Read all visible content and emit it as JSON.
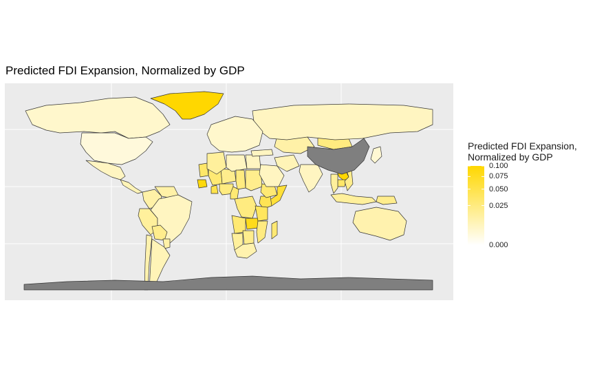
{
  "title": "Predicted FDI Expansion, Normalized by GDP",
  "legend": {
    "title_line1": "Predicted FDI Expansion,",
    "title_line2": "Normalized by GDP",
    "ticks": [
      "0.100",
      "0.075",
      "0.050",
      "0.025",
      "0.000"
    ],
    "tick_values": [
      0.1,
      0.075,
      0.05,
      0.025,
      0.0
    ],
    "scale": "sqrt",
    "color_low": "#ffffff",
    "color_high": "#ffd700",
    "missing_color": "#7f7f7f"
  },
  "map": {
    "type": "choropleth",
    "projection": "equirectangular",
    "panel_background": "#ebebeb",
    "grid": true,
    "border_color": "#333333",
    "regions": [
      {
        "name": "Greenland",
        "value": 0.1
      },
      {
        "name": "Laos",
        "value": 0.1
      },
      {
        "name": "Guinea",
        "value": 0.09
      },
      {
        "name": "Zambia",
        "value": 0.08
      },
      {
        "name": "Somalia",
        "value": 0.06
      },
      {
        "name": "Kenya",
        "value": 0.045
      },
      {
        "name": "Ghana",
        "value": 0.05
      },
      {
        "name": "Mali",
        "value": 0.03
      },
      {
        "name": "Mauritania",
        "value": 0.035
      },
      {
        "name": "Niger",
        "value": 0.02
      },
      {
        "name": "Algeria",
        "value": 0.015
      },
      {
        "name": "Libya",
        "value": 0.006
      },
      {
        "name": "Egypt",
        "value": 0.006
      },
      {
        "name": "Sudan",
        "value": 0.02
      },
      {
        "name": "Chad",
        "value": 0.025
      },
      {
        "name": "Nigeria",
        "value": 0.025
      },
      {
        "name": "Cameroon",
        "value": 0.03
      },
      {
        "name": "DR Congo",
        "value": 0.025
      },
      {
        "name": "Ethiopia",
        "value": 0.03
      },
      {
        "name": "Tanzania",
        "value": 0.04
      },
      {
        "name": "Angola",
        "value": 0.03
      },
      {
        "name": "Namibia",
        "value": 0.015
      },
      {
        "name": "Botswana",
        "value": 0.02
      },
      {
        "name": "South Africa",
        "value": 0.01
      },
      {
        "name": "Mozambique",
        "value": 0.025
      },
      {
        "name": "Madagascar",
        "value": 0.03
      },
      {
        "name": "Cambodia",
        "value": 0.035
      },
      {
        "name": "Vietnam",
        "value": 0.02
      },
      {
        "name": "Thailand",
        "value": 0.015
      },
      {
        "name": "Mongolia",
        "value": 0.025
      },
      {
        "name": "Kazakhstan",
        "value": 0.012
      },
      {
        "name": "Russia",
        "value": 0.006
      },
      {
        "name": "India",
        "value": 0.006
      },
      {
        "name": "Iran",
        "value": 0.008
      },
      {
        "name": "Saudi Arabia",
        "value": 0.006
      },
      {
        "name": "Turkey",
        "value": 0.006
      },
      {
        "name": "Europe",
        "value": 0.004
      },
      {
        "name": "Australia",
        "value": 0.01
      },
      {
        "name": "Papua New Guinea",
        "value": 0.02
      },
      {
        "name": "Indonesia",
        "value": 0.015
      },
      {
        "name": "Canada",
        "value": 0.004
      },
      {
        "name": "United States",
        "value": 0.002
      },
      {
        "name": "Mexico",
        "value": 0.006
      },
      {
        "name": "Central America",
        "value": 0.008
      },
      {
        "name": "Colombia",
        "value": 0.012
      },
      {
        "name": "Venezuela",
        "value": 0.012
      },
      {
        "name": "Peru",
        "value": 0.015
      },
      {
        "name": "Brazil",
        "value": 0.006
      },
      {
        "name": "Bolivia",
        "value": 0.02
      },
      {
        "name": "Paraguay",
        "value": 0.012
      },
      {
        "name": "Chile",
        "value": 0.01
      },
      {
        "name": "Argentina",
        "value": 0.008
      },
      {
        "name": "Japan",
        "value": 0.003
      },
      {
        "name": "China",
        "value": null
      },
      {
        "name": "Antarctica",
        "value": null
      }
    ]
  }
}
